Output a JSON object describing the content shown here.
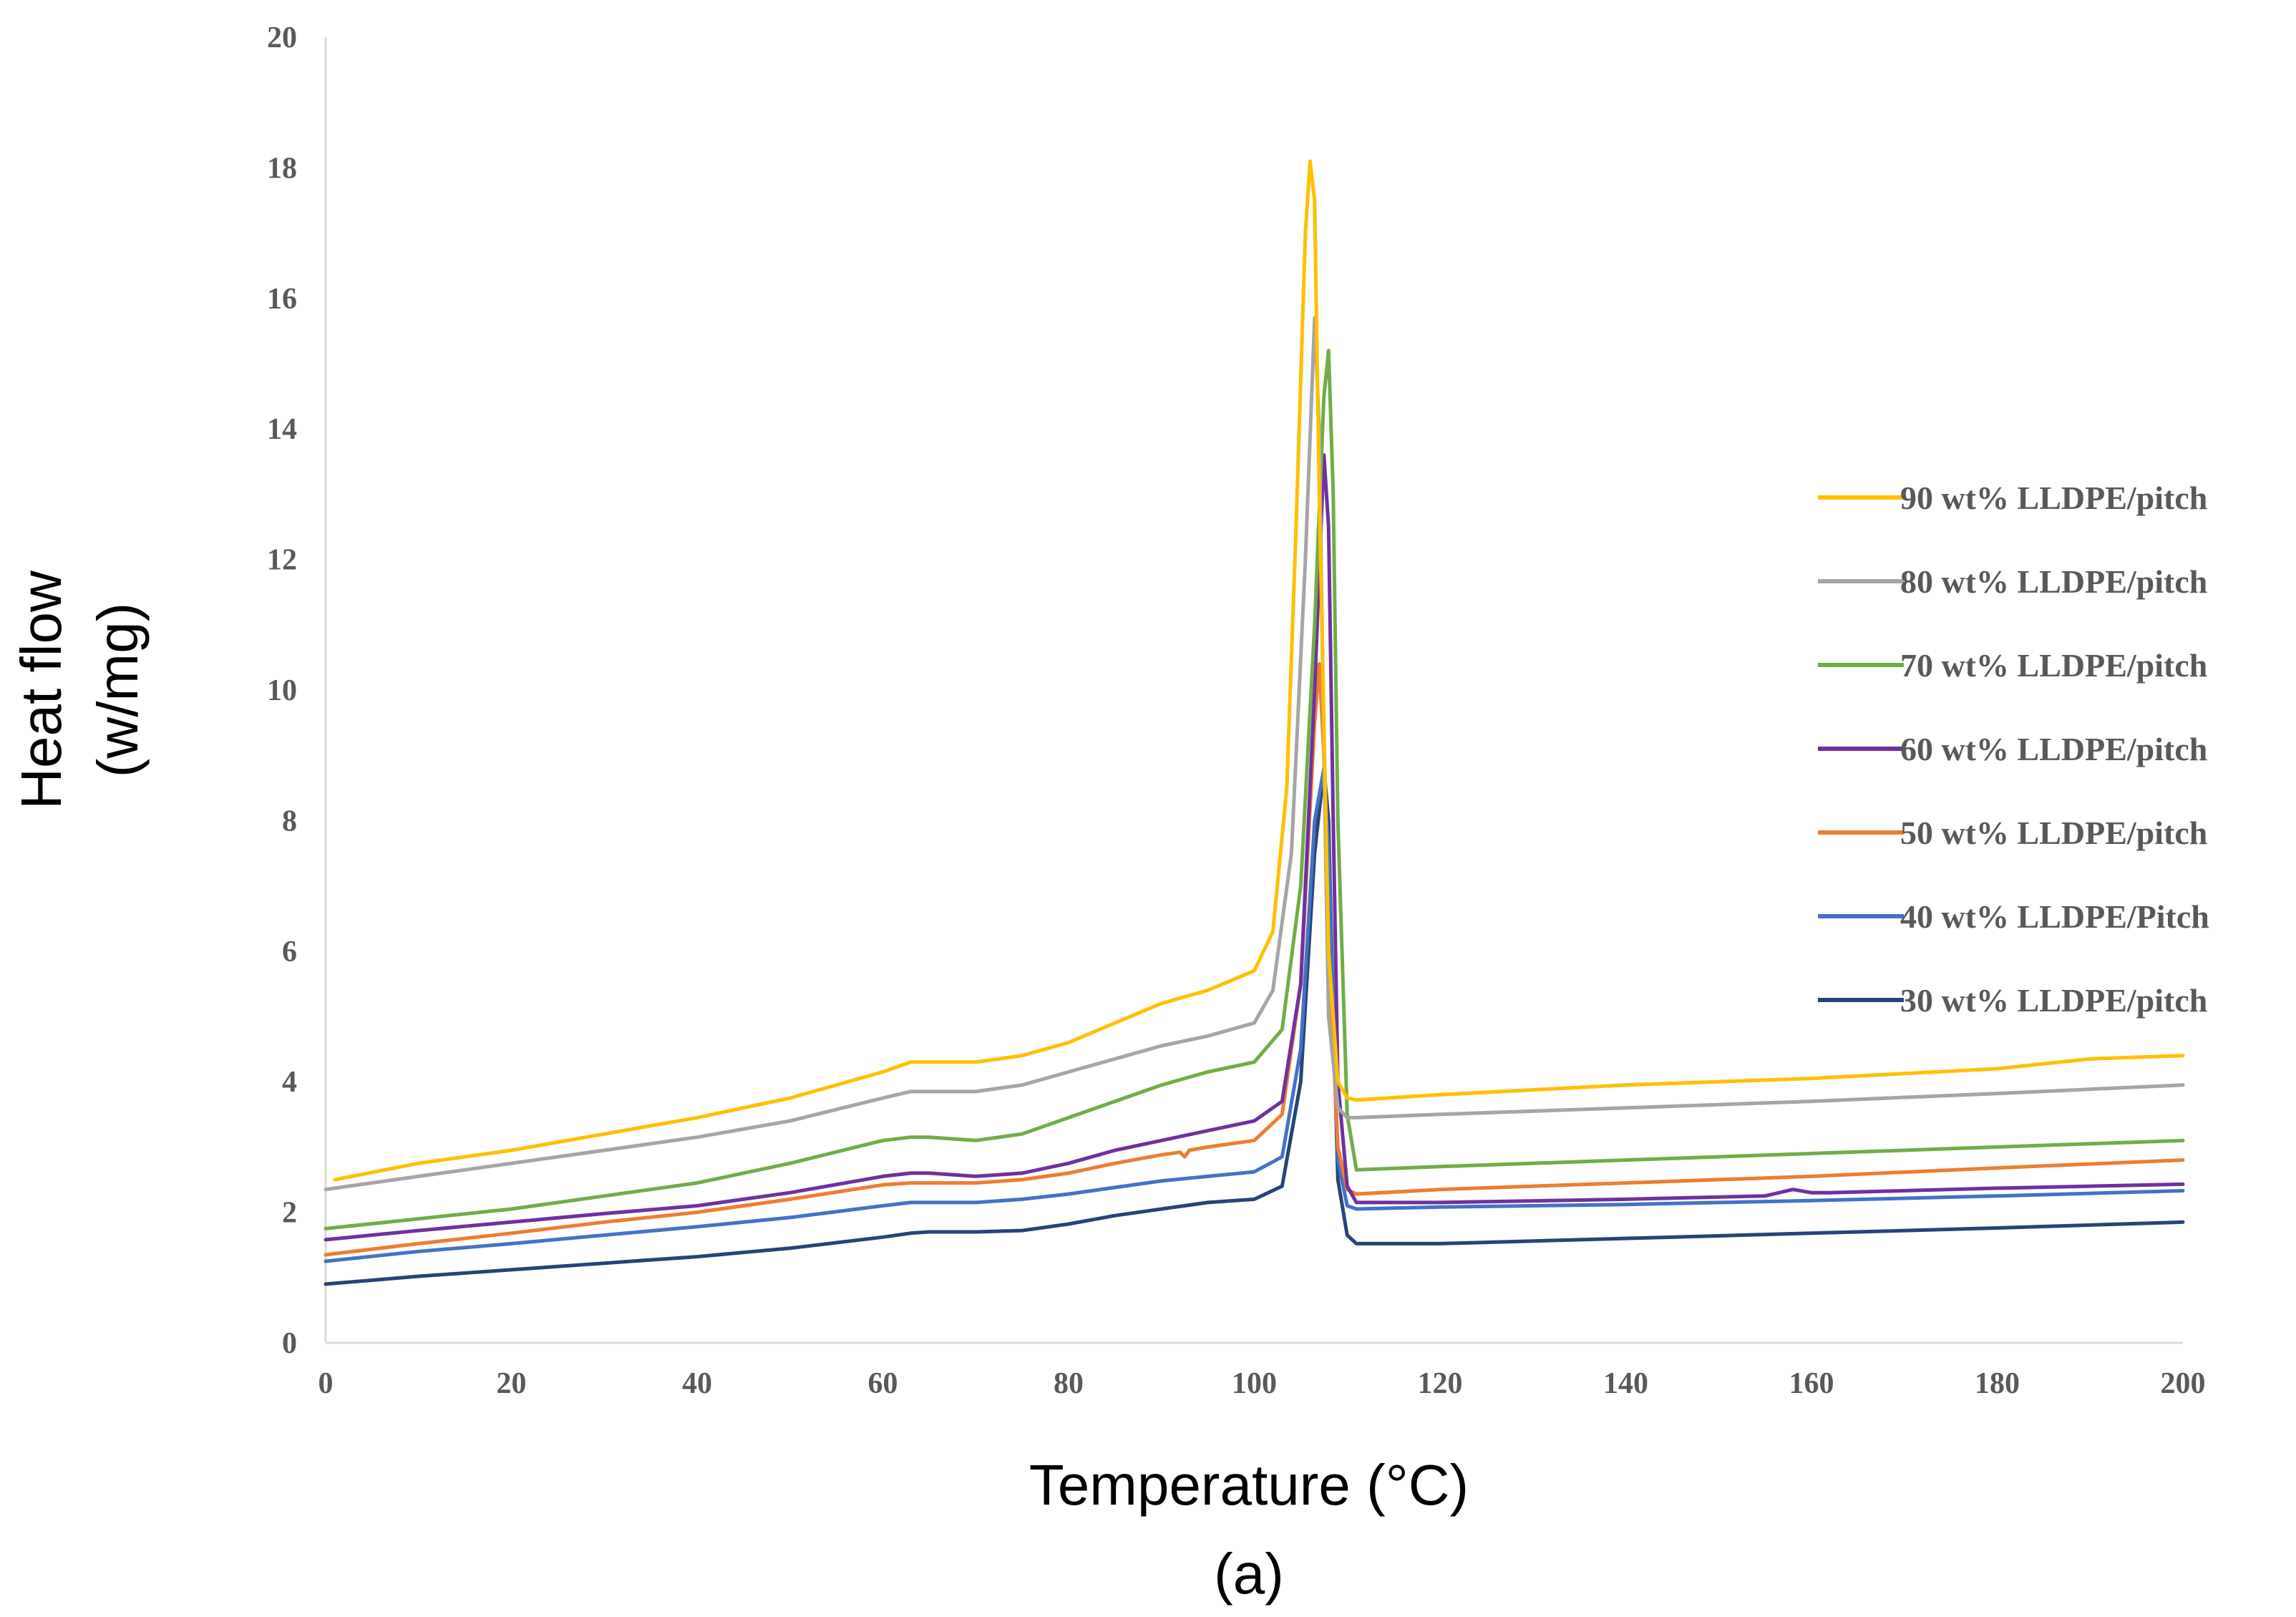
{
  "chart_data": {
    "type": "line",
    "title": "",
    "xlabel": "Temperature (°C)",
    "ylabel_line1": "Heat flow",
    "ylabel_line2": "(w/mg)",
    "caption": "(a)",
    "xlim": [
      0,
      200
    ],
    "ylim": [
      0,
      20
    ],
    "xticks": [
      0,
      20,
      40,
      60,
      80,
      100,
      120,
      140,
      160,
      180,
      200
    ],
    "yticks": [
      0,
      2,
      4,
      6,
      8,
      10,
      12,
      14,
      16,
      18,
      20
    ],
    "legend_position": "right",
    "series": [
      {
        "name": "90 wt% LLDPE/pitch",
        "color": "#FFC000",
        "x": [
          1,
          10,
          20,
          30,
          40,
          50,
          60,
          63,
          65,
          70,
          75,
          80,
          85,
          90,
          95,
          100,
          102,
          103.5,
          104.5,
          105.5,
          106,
          106.5,
          107,
          108,
          109,
          110,
          111,
          120,
          140,
          160,
          180,
          190,
          200
        ],
        "y": [
          2.5,
          2.75,
          2.95,
          3.2,
          3.45,
          3.75,
          4.15,
          4.3,
          4.3,
          4.3,
          4.4,
          4.6,
          4.9,
          5.2,
          5.4,
          5.7,
          6.3,
          8.5,
          12.5,
          17.0,
          18.1,
          17.5,
          13.0,
          6.0,
          4.0,
          3.75,
          3.72,
          3.8,
          3.95,
          4.05,
          4.2,
          4.35,
          4.4
        ]
      },
      {
        "name": "80 wt% LLDPE/pitch",
        "color": "#A5A5A5",
        "x": [
          0,
          10,
          20,
          30,
          40,
          50,
          60,
          63,
          65,
          70,
          75,
          80,
          85,
          90,
          95,
          100,
          102,
          104,
          105.5,
          106.5,
          107,
          107.5,
          108,
          109,
          110,
          111,
          120,
          140,
          160,
          180,
          200
        ],
        "y": [
          2.35,
          2.55,
          2.75,
          2.95,
          3.15,
          3.4,
          3.75,
          3.85,
          3.85,
          3.85,
          3.95,
          4.15,
          4.35,
          4.55,
          4.7,
          4.9,
          5.4,
          7.5,
          12.0,
          15.7,
          14.0,
          9.0,
          5.0,
          3.6,
          3.45,
          3.45,
          3.5,
          3.6,
          3.7,
          3.82,
          3.95
        ]
      },
      {
        "name": "70 wt% LLDPE/pitch",
        "color": "#70AD47",
        "x": [
          0,
          10,
          20,
          30,
          40,
          50,
          60,
          63,
          65,
          70,
          75,
          80,
          85,
          90,
          95,
          100,
          103,
          105,
          106.5,
          107.5,
          108,
          108.5,
          109,
          110,
          111,
          120,
          140,
          160,
          180,
          200
        ],
        "y": [
          1.75,
          1.9,
          2.05,
          2.25,
          2.45,
          2.75,
          3.1,
          3.15,
          3.15,
          3.1,
          3.2,
          3.45,
          3.7,
          3.95,
          4.15,
          4.3,
          4.8,
          7.0,
          11.0,
          14.5,
          15.2,
          13.0,
          8.0,
          3.5,
          2.65,
          2.7,
          2.8,
          2.9,
          3.0,
          3.1
        ]
      },
      {
        "name": "60 wt% LLDPE/pitch",
        "color": "#7030A0",
        "x": [
          0,
          10,
          20,
          30,
          40,
          50,
          60,
          63,
          65,
          70,
          75,
          80,
          85,
          90,
          95,
          100,
          103,
          105,
          106.5,
          107.5,
          108,
          108.5,
          109,
          110,
          111,
          120,
          140,
          155,
          158,
          160,
          162,
          180,
          200
        ],
        "y": [
          1.58,
          1.72,
          1.85,
          1.98,
          2.1,
          2.3,
          2.55,
          2.6,
          2.6,
          2.55,
          2.6,
          2.75,
          2.95,
          3.1,
          3.25,
          3.4,
          3.7,
          5.5,
          10.0,
          13.6,
          12.5,
          8.0,
          4.0,
          2.4,
          2.15,
          2.15,
          2.2,
          2.25,
          2.35,
          2.3,
          2.3,
          2.37,
          2.43
        ]
      },
      {
        "name": "50 wt% LLDPE/pitch",
        "color": "#ED7D31",
        "x": [
          0,
          10,
          20,
          30,
          40,
          50,
          60,
          63,
          65,
          70,
          75,
          80,
          85,
          90,
          92,
          92.5,
          93,
          95,
          100,
          103,
          105,
          106.5,
          107,
          107.5,
          108,
          109,
          110,
          111,
          120,
          140,
          160,
          180,
          200
        ],
        "y": [
          1.35,
          1.52,
          1.68,
          1.85,
          2.0,
          2.2,
          2.42,
          2.45,
          2.45,
          2.45,
          2.5,
          2.6,
          2.75,
          2.88,
          2.92,
          2.85,
          2.95,
          3.0,
          3.1,
          3.5,
          5.5,
          9.5,
          10.4,
          9.0,
          6.0,
          3.0,
          2.35,
          2.28,
          2.35,
          2.45,
          2.55,
          2.68,
          2.8
        ]
      },
      {
        "name": "40 wt% LLDPE/Pitch",
        "color": "#4472C4",
        "x": [
          0,
          10,
          20,
          30,
          40,
          50,
          60,
          63,
          65,
          70,
          75,
          80,
          85,
          90,
          95,
          100,
          103,
          105,
          106.5,
          107.5,
          108,
          108.5,
          109,
          110,
          111,
          120,
          140,
          160,
          180,
          200
        ],
        "y": [
          1.25,
          1.4,
          1.52,
          1.65,
          1.78,
          1.92,
          2.1,
          2.15,
          2.15,
          2.15,
          2.2,
          2.28,
          2.38,
          2.48,
          2.55,
          2.62,
          2.85,
          4.5,
          8.0,
          8.8,
          7.5,
          5.0,
          2.8,
          2.1,
          2.05,
          2.08,
          2.12,
          2.18,
          2.25,
          2.33
        ]
      },
      {
        "name": "30 wt% LLDPE/pitch",
        "color": "#264478",
        "x": [
          0,
          10,
          20,
          30,
          40,
          50,
          60,
          63,
          65,
          70,
          75,
          80,
          85,
          90,
          95,
          100,
          103,
          105,
          106.5,
          107.5,
          108,
          108.5,
          109,
          110,
          111,
          120,
          140,
          160,
          180,
          200
        ],
        "y": [
          0.9,
          1.02,
          1.12,
          1.22,
          1.32,
          1.45,
          1.62,
          1.68,
          1.7,
          1.7,
          1.72,
          1.82,
          1.95,
          2.05,
          2.15,
          2.2,
          2.4,
          4.0,
          7.5,
          8.8,
          8.0,
          5.0,
          2.5,
          1.65,
          1.52,
          1.52,
          1.6,
          1.68,
          1.76,
          1.85
        ]
      }
    ]
  }
}
